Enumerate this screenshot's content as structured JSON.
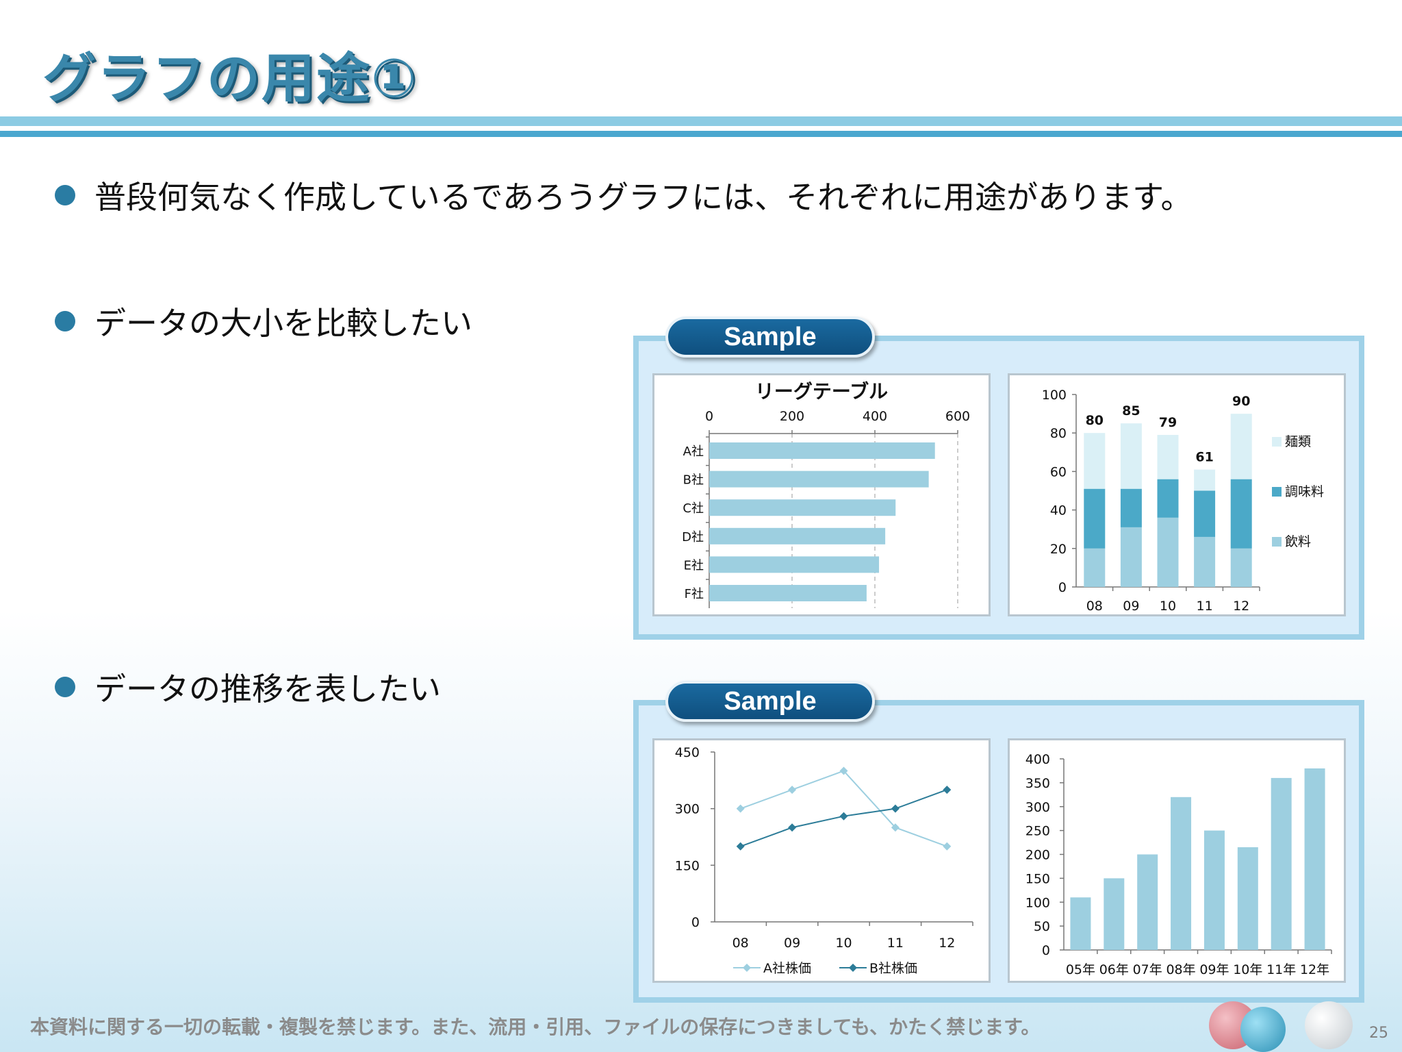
{
  "slide": {
    "title": "グラフの用途①",
    "bullets": [
      "普段何気なく作成しているであろうグラフには、それぞれに用途があります。",
      "データの大小を比較したい",
      "データの推移を表したい"
    ],
    "sample_label": "Sample",
    "footer": "本資料に関する一切の転載・複製を禁じます。また、流用・引用、ファイルの保存につきましても、かたく禁じます。",
    "page_number": "25"
  },
  "colors": {
    "light_blue": "#9dcfe0",
    "mid_blue": "#4ba9c8",
    "pale_blue": "#daf0f6",
    "dark_teal": "#2c7c98"
  },
  "chart_data": [
    {
      "type": "bar",
      "orientation": "horizontal",
      "title": "リーグテーブル",
      "categories": [
        "A社",
        "B社",
        "C社",
        "D社",
        "E社",
        "F社"
      ],
      "values": [
        545,
        530,
        450,
        425,
        410,
        380
      ],
      "xlim": [
        0,
        600
      ],
      "xticks": [
        "0",
        "200",
        "400",
        "600"
      ]
    },
    {
      "type": "bar",
      "stacked": true,
      "categories": [
        "08",
        "09",
        "10",
        "11",
        "12"
      ],
      "series": [
        {
          "name": "飲料",
          "values": [
            20,
            31,
            36,
            26,
            20
          ]
        },
        {
          "name": "調味料",
          "values": [
            31,
            20,
            20,
            24,
            36
          ]
        },
        {
          "name": "麺類",
          "values": [
            29,
            34,
            23,
            11,
            34
          ]
        }
      ],
      "totals": [
        "80",
        "85",
        "79",
        "61",
        "90"
      ],
      "ylim": [
        0,
        100
      ],
      "yticks": [
        "0",
        "20",
        "40",
        "60",
        "80",
        "100"
      ],
      "legend": "right"
    },
    {
      "type": "line",
      "categories": [
        "08",
        "09",
        "10",
        "11",
        "12"
      ],
      "series": [
        {
          "name": "A社株価",
          "values": [
            300,
            350,
            400,
            250,
            200
          ]
        },
        {
          "name": "B社株価",
          "values": [
            200,
            250,
            280,
            300,
            350
          ]
        }
      ],
      "ylim": [
        0,
        450
      ],
      "yticks": [
        "0",
        "150",
        "300",
        "450"
      ],
      "legend": "bottom"
    },
    {
      "type": "bar",
      "categories": [
        "05年",
        "06年",
        "07年",
        "08年",
        "09年",
        "10年",
        "11年",
        "12年"
      ],
      "values": [
        110,
        150,
        200,
        320,
        250,
        215,
        360,
        380
      ],
      "ylim": [
        0,
        400
      ],
      "yticks": [
        "0",
        "50",
        "100",
        "150",
        "200",
        "250",
        "300",
        "350",
        "400"
      ]
    }
  ]
}
